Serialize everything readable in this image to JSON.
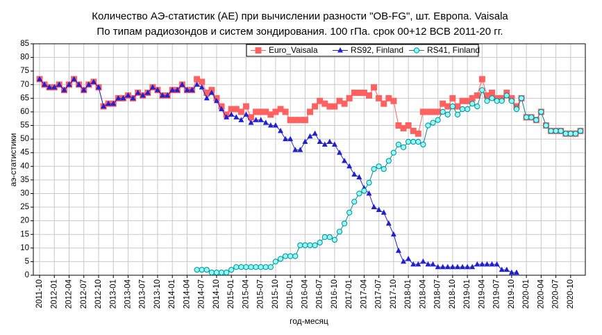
{
  "chart_data": {
    "type": "line",
    "title": "Количество АЭ-статистик (AE) при вычислении разности \"OB-FG\", шт. Европа. Vaisala",
    "subtitle": "По типам радиозондов и систем зондирования. 100 гПа. срок 00+12 ВСВ 2011-20 гг.",
    "x_label": "год-месяц",
    "y_label": "аэ-статистики",
    "categories": [
      "2011-10",
      null,
      null,
      "2012-01",
      null,
      null,
      "2012-04",
      null,
      null,
      "2012-07",
      null,
      null,
      "2012-10",
      null,
      null,
      "2013-01",
      null,
      null,
      "2013-04",
      null,
      null,
      "2013-07",
      null,
      null,
      "2013-10",
      null,
      null,
      "2014-01",
      null,
      null,
      "2014-04",
      null,
      null,
      "2014-07",
      null,
      null,
      "2014-10",
      null,
      null,
      "2015-01",
      null,
      null,
      "2015-04",
      null,
      null,
      "2015-07",
      null,
      null,
      "2015-10",
      null,
      null,
      "2016-01",
      null,
      null,
      "2016-04",
      null,
      null,
      "2016-07",
      null,
      null,
      "2016-10",
      null,
      null,
      "2017-01",
      null,
      null,
      "2017-04",
      null,
      null,
      "2017-07",
      null,
      null,
      "2017-10",
      null,
      null,
      "2018-01",
      null,
      null,
      "2018-04",
      null,
      null,
      "2018-07",
      null,
      null,
      "2018-10",
      null,
      null,
      "2019-01",
      null,
      null,
      "2019-04",
      null,
      null,
      "2019-07",
      null,
      null,
      "2019-10",
      null,
      null,
      "2020-01",
      null,
      null,
      "2020-04",
      null,
      null,
      "2020-07",
      null,
      null,
      "2020-10",
      null,
      null
    ],
    "series": [
      {
        "name": "Euro_Vaisala",
        "color": "#ff6060",
        "marker": "square",
        "values": [
          72,
          70,
          69,
          69,
          70,
          68,
          70,
          72,
          70,
          68,
          70,
          71,
          69,
          62,
          63,
          63,
          65,
          65,
          66,
          65,
          67,
          66,
          67,
          69,
          68,
          66,
          66,
          68,
          68,
          70,
          68,
          68,
          72,
          71,
          67,
          68,
          65,
          62,
          59,
          61,
          61,
          60,
          62,
          58,
          60,
          60,
          60,
          59,
          60,
          61,
          60,
          57,
          57,
          57,
          57,
          60,
          62,
          64,
          63,
          62,
          62,
          64,
          63,
          65,
          67,
          67,
          67,
          66,
          69,
          65,
          63,
          65,
          64,
          55,
          54,
          55,
          53,
          52,
          60,
          60,
          60,
          60,
          63,
          62,
          65,
          62,
          64,
          64,
          65,
          66,
          72,
          66,
          67,
          65,
          65,
          67,
          65,
          62,
          65,
          58,
          58,
          57,
          60,
          55,
          53,
          53,
          53,
          52,
          52,
          52,
          53
        ]
      },
      {
        "name": "RS92, Finland",
        "color": "#2020d0",
        "marker": "triangle",
        "values": [
          72,
          70,
          69,
          69,
          70,
          68,
          70,
          72,
          70,
          68,
          70,
          71,
          69,
          62,
          63,
          63,
          65,
          65,
          66,
          65,
          67,
          66,
          67,
          69,
          68,
          66,
          66,
          68,
          68,
          70,
          68,
          68,
          70,
          69,
          65,
          67,
          64,
          61,
          58,
          59,
          58,
          57,
          59,
          56,
          57,
          57,
          56,
          55,
          55,
          53,
          50,
          50,
          46,
          46,
          49,
          51,
          52,
          49,
          48,
          49,
          48,
          45,
          42,
          40,
          37,
          36,
          32,
          30,
          25,
          24,
          23,
          19,
          15,
          9,
          5,
          6,
          4,
          4,
          5,
          4,
          4,
          3,
          3,
          3,
          3,
          3,
          3,
          3,
          3,
          4,
          4,
          4,
          4,
          4,
          2,
          2,
          1,
          1,
          null,
          null,
          null,
          null,
          null,
          null,
          null,
          null,
          null,
          null,
          null,
          null,
          null
        ]
      },
      {
        "name": "RS41, Finland",
        "color": "#008b8b",
        "fill": "#90ffff",
        "marker": "circle",
        "values": [
          null,
          null,
          null,
          null,
          null,
          null,
          null,
          null,
          null,
          null,
          null,
          null,
          null,
          null,
          null,
          null,
          null,
          null,
          null,
          null,
          null,
          null,
          null,
          null,
          null,
          null,
          null,
          null,
          null,
          null,
          null,
          null,
          2,
          2,
          2,
          1,
          1,
          1,
          1,
          2,
          3,
          3,
          3,
          3,
          3,
          3,
          3,
          3,
          5,
          6,
          7,
          7,
          7,
          11,
          11,
          11,
          11,
          12,
          14,
          14,
          13,
          16,
          19,
          23,
          27,
          30,
          31,
          34,
          39,
          40,
          39,
          42,
          45,
          48,
          47,
          49,
          49,
          49,
          48,
          55,
          56,
          57,
          60,
          59,
          62,
          59,
          61,
          61,
          63,
          62,
          68,
          64,
          65,
          64,
          64,
          66,
          64,
          61,
          65,
          58,
          58,
          57,
          60,
          55,
          53,
          53,
          53,
          52,
          52,
          52,
          53
        ]
      }
    ],
    "ylim": [
      0,
      85
    ],
    "yticks": [
      0,
      5,
      10,
      15,
      20,
      25,
      30,
      35,
      40,
      45,
      50,
      55,
      60,
      65,
      70,
      75,
      80,
      85
    ],
    "grid": true
  }
}
